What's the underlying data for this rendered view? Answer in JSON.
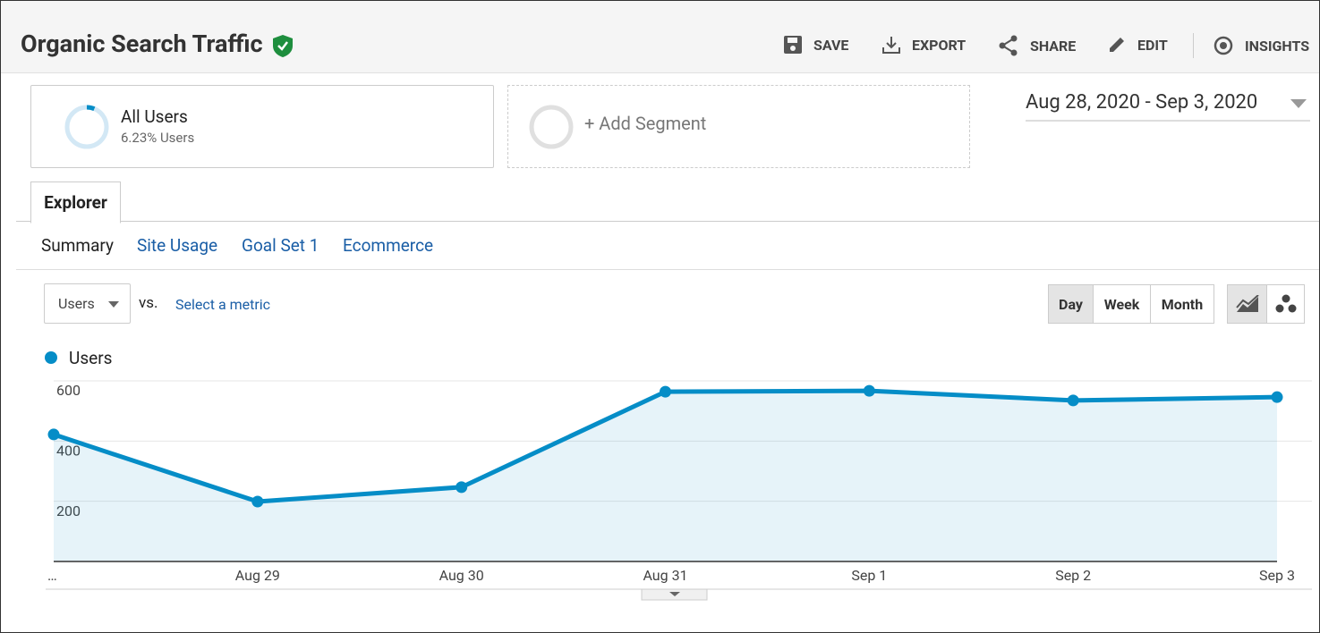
{
  "header": {
    "title": "Organic Search Traffic",
    "actions": [
      "SAVE",
      "EXPORT",
      "SHARE",
      "EDIT",
      "INSIGHTS"
    ]
  },
  "segments": {
    "active": {
      "name": "All Users",
      "detail": "6.23% Users"
    },
    "add": "+ Add Segment"
  },
  "date_range": "Aug 28, 2020 - Sep 3, 2020",
  "tabs": [
    "Explorer"
  ],
  "subtabs": [
    "Summary",
    "Site Usage",
    "Goal Set 1",
    "Ecommerce"
  ],
  "controls": {
    "metric": "Users",
    "vs": "vs.",
    "select": "Select a metric",
    "periods": [
      "Day",
      "Week",
      "Month"
    ]
  },
  "chart_data": {
    "type": "line",
    "categories": [
      "…",
      "Aug 29",
      "Aug 30",
      "Aug 31",
      "Sep 1",
      "Sep 2",
      "Sep 3"
    ],
    "series": [
      {
        "name": "Users",
        "color": "#058dc7",
        "values": [
          422,
          199,
          247,
          564,
          567,
          535,
          546
        ]
      }
    ],
    "ylim": [
      0,
      600
    ],
    "yticks": [
      200,
      400,
      600
    ],
    "grid": true
  }
}
